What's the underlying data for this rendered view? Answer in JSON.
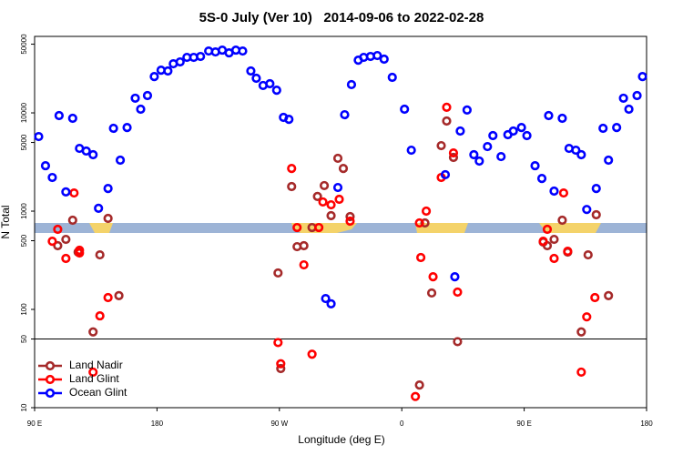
{
  "chart_data": {
    "type": "scatter",
    "title": "5S-0 July (Ver 10)   2014-09-06 to 2022-02-28",
    "x_label": "Longitude (deg E)",
    "y_label": "N Total",
    "ylog": true,
    "xlim": [
      90,
      540
    ],
    "ylim": [
      10,
      60000
    ],
    "xticks": [
      {
        "value": 90,
        "label": "90 E"
      },
      180,
      {
        "value": 270,
        "label": "90 W"
      },
      {
        "value": 360,
        "label": "0"
      },
      {
        "value": 450,
        "label": "90 E"
      },
      {
        "value": 540,
        "label": "180"
      }
    ],
    "yticks": [
      10,
      50,
      100,
      500,
      1000,
      5000,
      10000,
      50000
    ],
    "hline": 50,
    "legend": "bottom-left",
    "series": [
      {
        "name": "Land Nadir",
        "color": "#a52a2a",
        "x": [
          107,
          113,
          118,
          122,
          133,
          138,
          144,
          152,
          271,
          269,
          279,
          283,
          288,
          294,
          298,
          303,
          308,
          313,
          317,
          322,
          373,
          377,
          382,
          389,
          393,
          398,
          401,
          464,
          467,
          472,
          478,
          482,
          492,
          497,
          503,
          512
        ],
        "values": [
          445,
          516,
          808,
          383,
          59,
          359,
          843,
          138,
          25,
          235,
          1780,
          435,
          445,
          681,
          1410,
          1820,
          899,
          3450,
          2720,
          880,
          17,
          758,
          147,
          4640,
          8260,
          3520,
          47,
          484,
          445,
          516,
          808,
          383,
          59,
          359,
          918,
          138
        ]
      },
      {
        "name": "Land Glint",
        "color": "#ff0000",
        "x": [
          103,
          107,
          113,
          119,
          123,
          123,
          133,
          138,
          144,
          279,
          283,
          288,
          294,
          299,
          302,
          308,
          314,
          322,
          373,
          374,
          378,
          383,
          389,
          393,
          398,
          401,
          370,
          464,
          467,
          472,
          479,
          482,
          492,
          496,
          502,
          269,
          271
        ],
        "values": [
          494,
          653,
          330,
          1530,
          400,
          375,
          23,
          86,
          132,
          2720,
          681,
          284,
          35,
          681,
          1240,
          1160,
          1320,
          791,
          758,
          337,
          1000,
          215,
          2200,
          11400,
          3910,
          150,
          13,
          494,
          653,
          330,
          1530,
          391,
          23,
          84,
          132,
          46,
          28
        ]
      },
      {
        "name": "Ocean Glint",
        "color": "#0000ff",
        "x": [
          93,
          98,
          103,
          108,
          113,
          118,
          123,
          128,
          133,
          137,
          144,
          148,
          153,
          158,
          164,
          168,
          173,
          178,
          183,
          188,
          192,
          197,
          202,
          207,
          212,
          218,
          223,
          228,
          233,
          238,
          243,
          249,
          253,
          258,
          263,
          268,
          273,
          277,
          304,
          308,
          313,
          318,
          323,
          328,
          332,
          337,
          342,
          347,
          353,
          362,
          367,
          392,
          399,
          403,
          408,
          413,
          417,
          423,
          427,
          433,
          438,
          442,
          448,
          452,
          458,
          463,
          468,
          472,
          478,
          483,
          488,
          492,
          496,
          503,
          508,
          512,
          518,
          523,
          527,
          533,
          537
        ],
        "values": [
          5740,
          2900,
          2200,
          9380,
          1570,
          8800,
          4350,
          4090,
          3750,
          1070,
          1700,
          6960,
          3300,
          7100,
          14100,
          10900,
          15000,
          23400,
          27200,
          26700,
          31600,
          33000,
          36700,
          36700,
          37500,
          42600,
          41700,
          43500,
          40800,
          43500,
          42600,
          26700,
          22500,
          19000,
          19800,
          17000,
          9000,
          8600,
          129,
          114,
          1740,
          9580,
          19400,
          34400,
          36700,
          37500,
          38300,
          35200,
          23000,
          10900,
          4170,
          2350,
          215,
          6530,
          10700,
          3750,
          3230,
          4540,
          5870,
          3590,
          6000,
          6530,
          7100,
          5870,
          2900,
          2150,
          9380,
          1600,
          8800,
          4350,
          4170,
          3750,
          1040,
          1700,
          6960,
          3300,
          7100,
          14100,
          10900,
          15000,
          23400
        ]
      }
    ]
  }
}
